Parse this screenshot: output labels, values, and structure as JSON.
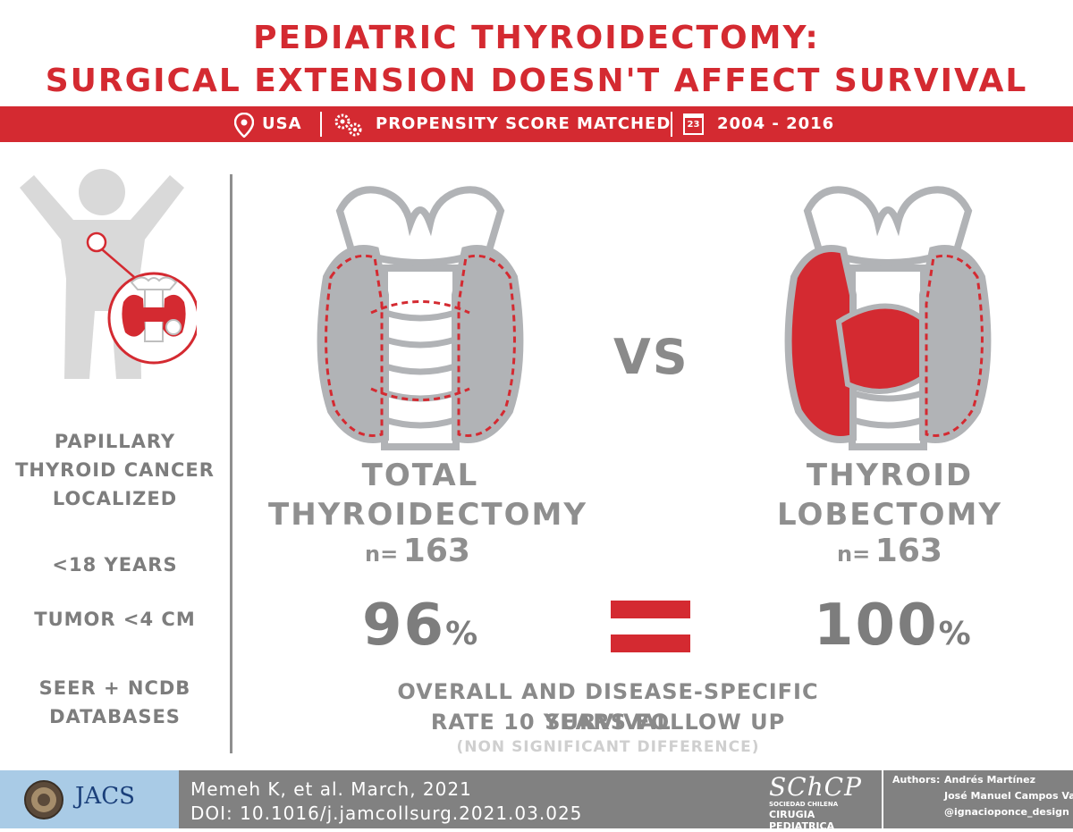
{
  "title": {
    "line1": "PEDIATRIC THYROIDECTOMY:",
    "line2": "SURGICAL EXTENSION DOESN'T AFFECT SURVIVAL"
  },
  "banner": {
    "location": "USA",
    "method": "PROPENSITY SCORE MATCHED",
    "calendar_day": "23",
    "period": "2004 - 2016"
  },
  "criteria": {
    "diagnosis": [
      "PAPILLARY",
      "THYROID CANCER",
      "LOCALIZED"
    ],
    "age": "<18 YEARS",
    "tumor": "TUMOR <4 CM",
    "source": [
      "SEER + NCDB",
      "DATABASES"
    ]
  },
  "total": {
    "name": [
      "TOTAL",
      "THYROIDECTOMY"
    ],
    "n_label": "n=",
    "n_value": "163",
    "survival": "96",
    "pct": "%"
  },
  "vs_label": "VS",
  "lobectomy": {
    "name": [
      "THYROID",
      "LOBECTOMY"
    ],
    "n_label": "n=",
    "n_value": "163",
    "survival": "100",
    "pct": "%"
  },
  "outcome": {
    "line1": "OVERALL AND DISEASE-SPECIFIC SURVIVAL",
    "line2": "RATE 10 YEARS FOLLOW UP",
    "note": "(NON SIGNIFICANT DIFFERENCE)"
  },
  "footer": {
    "journal": "JACS",
    "reference": "Memeh K, et al. March, 2021",
    "doi": "DOI: 10.1016/j.jamcollsurg.2021.03.025",
    "society_logo": "SChCP",
    "society_line1": "SOCIEDAD CHILENA",
    "society_line2": "CIRUGIA PEDIATRICA",
    "authors_label": "Authors:",
    "author1": "Andrés Martínez",
    "author2": "José Manuel Campos Varas",
    "author3": "@ignacioponce_design"
  },
  "colors": {
    "accent": "#d42a31",
    "gray_text": "#8a8a8a",
    "gray_organ": "#b1b3b6",
    "footer_gray": "#818181",
    "footer_blue": "#a9cbe6"
  },
  "icons": {
    "location": "map-pin-icon",
    "method": "gears-icon",
    "period": "calendar-icon"
  }
}
